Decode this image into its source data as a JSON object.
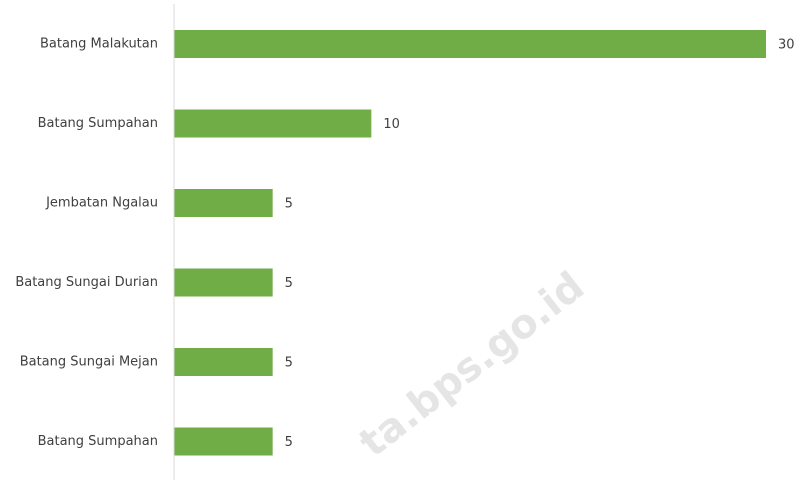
{
  "chart_data": {
    "type": "bar",
    "orientation": "horizontal",
    "categories": [
      "Batang Malakutan",
      "Batang Sumpahan",
      "Jembatan Ngalau",
      "Batang Sungai Durian",
      "Batang Sungai Mejan",
      "Batang Sumpahan"
    ],
    "values": [
      30,
      10,
      5,
      5,
      5,
      5
    ],
    "xlim": [
      0,
      30
    ],
    "grid": false,
    "legend": "none",
    "data_labels": true,
    "bar_color": "#70AD47",
    "axis_color": "#D9D9D9",
    "text_color": "#404040"
  },
  "watermark": {
    "text": "ta.bps.go.id"
  }
}
